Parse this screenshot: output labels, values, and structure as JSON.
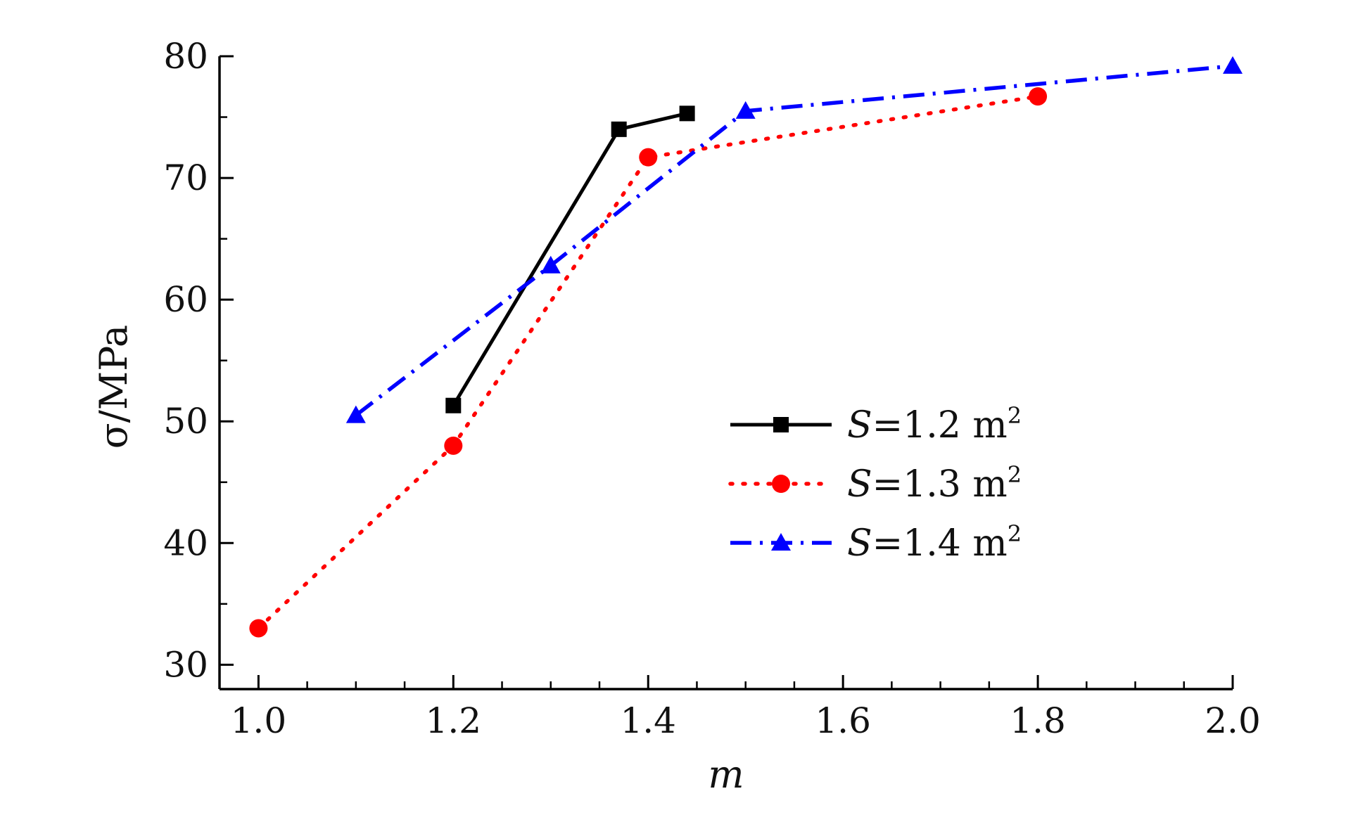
{
  "chart_data": {
    "type": "line",
    "title": "",
    "xlabel": "m",
    "ylabel": "σ/MPa",
    "xlim": [
      0.96,
      2.0
    ],
    "ylim": [
      28,
      80
    ],
    "x_ticks": [
      "1.0",
      "1.2",
      "1.4",
      "1.6",
      "1.8",
      "2.0"
    ],
    "x_tick_values": [
      1.0,
      1.2,
      1.4,
      1.6,
      1.8,
      2.0
    ],
    "y_ticks": [
      "30",
      "40",
      "50",
      "60",
      "70",
      "80"
    ],
    "y_tick_values": [
      30,
      40,
      50,
      60,
      70,
      80
    ],
    "grid": false,
    "legend_position": "center-right",
    "series": [
      {
        "legend_prefix": "S",
        "legend_suffix": "=1.2 m",
        "legend_exponent": "2",
        "color": "#000000",
        "line_style": "solid",
        "marker": "square",
        "x": [
          1.2,
          1.37,
          1.44
        ],
        "y": [
          51.3,
          74.0,
          75.3
        ]
      },
      {
        "legend_prefix": "S",
        "legend_suffix": "=1.3 m",
        "legend_exponent": "2",
        "color": "#ff0000",
        "line_style": "dotted",
        "marker": "circle",
        "x": [
          1.0,
          1.2,
          1.4,
          1.8
        ],
        "y": [
          33.0,
          48.0,
          71.7,
          76.7
        ]
      },
      {
        "legend_prefix": "S",
        "legend_suffix": "=1.4 m",
        "legend_exponent": "2",
        "color": "#0000ff",
        "line_style": "dash-dot",
        "marker": "triangle",
        "x": [
          1.1,
          1.3,
          1.5,
          2.0
        ],
        "y": [
          50.5,
          62.8,
          75.5,
          79.2
        ]
      }
    ]
  }
}
